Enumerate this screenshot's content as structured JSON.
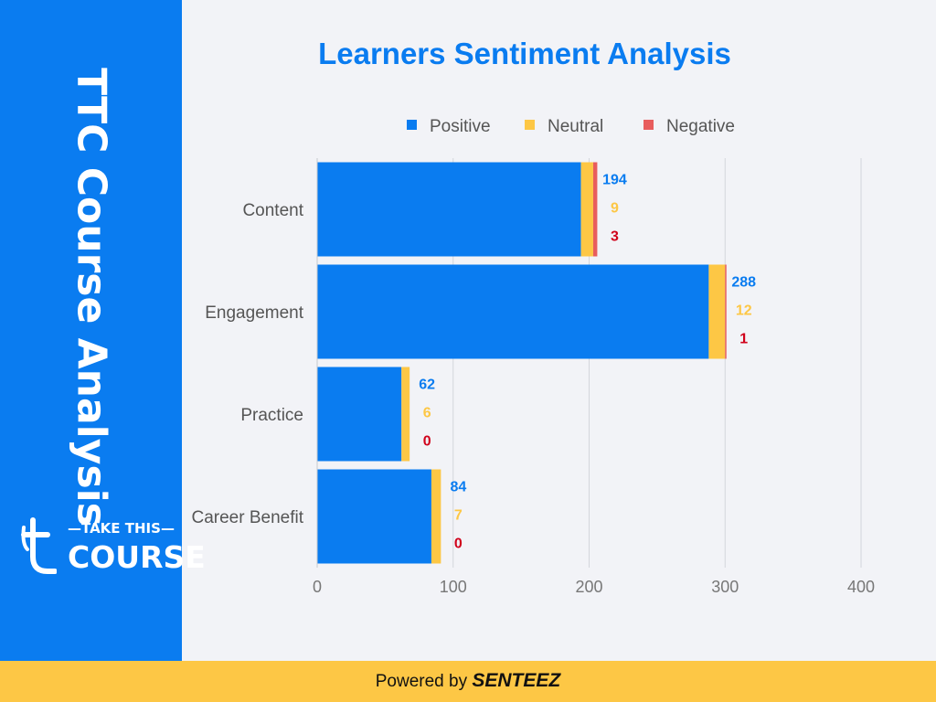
{
  "sidebar": {
    "title": "TTC Course Analysis",
    "logo": {
      "tagline": "TAKE THIS",
      "name": "COURSE",
      "mark": "t"
    }
  },
  "footer": {
    "prefix": "Powered by",
    "brand": "SENTEEZ"
  },
  "colors": {
    "positive": "#0a7cf0",
    "neutral": "#fdc745",
    "negative": "#e85d5d",
    "negative_label": "#d0021b",
    "sidebar": "#0a7cf0",
    "footer": "#fdc745"
  },
  "chart_data": {
    "type": "bar",
    "orientation": "horizontal",
    "stacked": true,
    "title": "Learners Sentiment Analysis",
    "categories": [
      "Content",
      "Engagement",
      "Practice",
      "Career Benefit"
    ],
    "series": [
      {
        "name": "Positive",
        "values": [
          194,
          288,
          62,
          84
        ]
      },
      {
        "name": "Neutral",
        "values": [
          9,
          12,
          6,
          7
        ]
      },
      {
        "name": "Negative",
        "values": [
          3,
          1,
          0,
          0
        ]
      }
    ],
    "xlim": [
      0,
      400
    ],
    "xticks": [
      "0",
      "100",
      "200",
      "300",
      "400"
    ],
    "grid": true,
    "legend": "top-center"
  }
}
